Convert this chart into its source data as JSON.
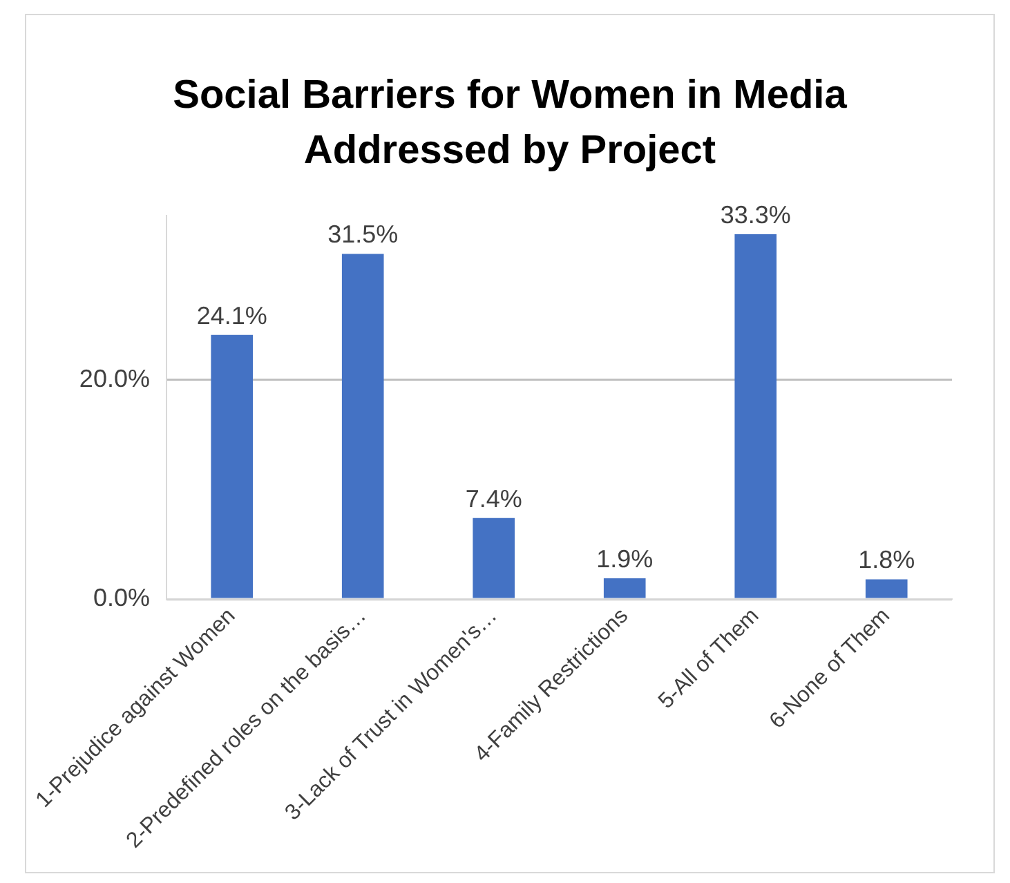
{
  "chart_data": {
    "type": "bar",
    "title": "Social Barriers for Women in Media Addressed by Project",
    "categories": [
      "1-Prejudice against Women",
      "2-Predefined roles on the basis…",
      "3-Lack of Trust in Women's…",
      "4-Family Restrictions",
      "5-All of Them",
      "6-None of Them"
    ],
    "values": [
      24.1,
      31.5,
      7.4,
      1.9,
      33.3,
      1.8
    ],
    "value_labels": [
      "24.1%",
      "31.5%",
      "7.4%",
      "1.9%",
      "33.3%",
      "1.8%"
    ],
    "color": "#4472c4",
    "ylim": [
      0,
      35
    ],
    "yticks": [
      {
        "value": 0,
        "label": "0.0%"
      },
      {
        "value": 20,
        "label": "20.0%"
      }
    ],
    "grid": "y"
  }
}
